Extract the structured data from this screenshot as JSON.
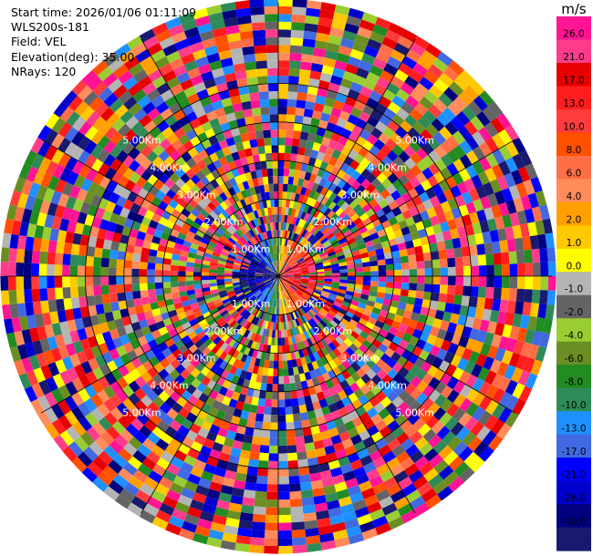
{
  "header": {
    "start_time": "Start time: 2026/01/06 01:11:09",
    "instrument": "WLS200s-181",
    "field": "Field: VEL",
    "elevation": "Elevation(deg): 35.00",
    "nrays": "NRays: 120"
  },
  "colorbar": {
    "unit": "m/s",
    "labels": [
      "26.0",
      "21.0",
      "17.0",
      "13.0",
      "10.0",
      "8.0",
      "6.0",
      "4.0",
      "2.0",
      "1.0",
      "0.0",
      "-1.0",
      "-2.0",
      "-4.0",
      "-6.0",
      "-8.0",
      "-10.0",
      "-13.0",
      "-17.0",
      "-21.0",
      "-26.0",
      "-30.0"
    ],
    "colors": [
      "#ff1493",
      "#ff3c8c",
      "#e60000",
      "#ff1e1e",
      "#ff3c3c",
      "#ff5000",
      "#ff6e46",
      "#ff8c5a",
      "#ffa000",
      "#ffc800",
      "#ffff00",
      "#b4b4b4",
      "#646464",
      "#9acd32",
      "#6b8e23",
      "#228b22",
      "#2e8b57",
      "#1e90ff",
      "#4169e1",
      "#0000ff",
      "#0000cd",
      "#000080",
      "#191970"
    ]
  },
  "chart_data": {
    "type": "heatmap",
    "projection": "polar PPI",
    "field": "VEL",
    "units": "m/s",
    "nrays": 120,
    "elevation_deg": 35.0,
    "color_range": [
      -30.0,
      26.0
    ],
    "range_ring_labels": [
      "1.00Km",
      "2.00Km",
      "3.00Km",
      "4.00Km",
      "5.00Km"
    ],
    "range_rings_km": [
      1,
      2,
      3,
      4,
      5
    ],
    "pattern": "near range (<1 km): positive velocities east (red/orange), negative velocities west (blue/green); beyond ~1 km: noise-dominated random velocities"
  }
}
